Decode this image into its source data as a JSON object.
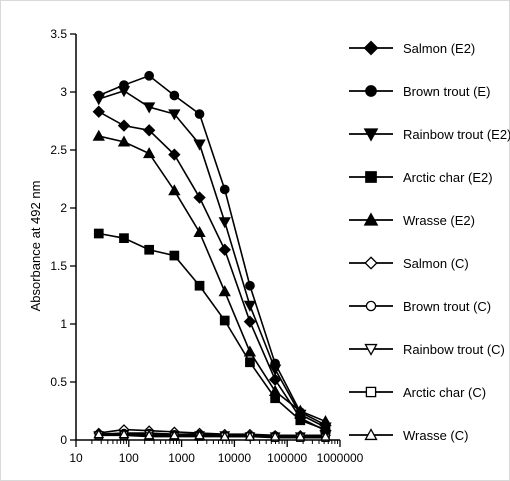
{
  "chart_data": {
    "type": "line",
    "xscale": "log",
    "xlim": [
      10,
      1000000
    ],
    "ylim": [
      0,
      3.5
    ],
    "ylabel": "Absorbance at  492 nm",
    "xlabel": "",
    "grid": false,
    "legend_position": "right",
    "x_ticks": [
      10,
      100,
      1000,
      10000,
      100000,
      1000000
    ],
    "x_tick_labels": [
      "10",
      "100",
      "1000",
      "10000",
      "100000",
      "1000000"
    ],
    "y_ticks": [
      0,
      0.5,
      1,
      1.5,
      2,
      2.5,
      3,
      3.5
    ],
    "y_tick_labels": [
      "0",
      "0.5",
      "1",
      "1.5",
      "2",
      "2.5",
      "3",
      "3.5"
    ],
    "x": [
      27,
      81,
      243,
      729,
      2187,
      6561,
      19683,
      59049,
      177147,
      531441
    ],
    "series": [
      {
        "name": "Salmon (E2)",
        "marker": "diamond",
        "filled": true,
        "values": [
          2.83,
          2.71,
          2.67,
          2.46,
          2.09,
          1.64,
          1.02,
          0.52,
          0.19,
          0.08
        ]
      },
      {
        "name": "Brown trout (E)",
        "marker": "circle",
        "filled": true,
        "values": [
          2.97,
          3.06,
          3.14,
          2.97,
          2.81,
          2.16,
          1.33,
          0.66,
          0.24,
          0.13
        ]
      },
      {
        "name": "Rainbow trout (E2)",
        "marker": "triangle-down",
        "filled": true,
        "values": [
          2.94,
          3.01,
          2.87,
          2.81,
          2.55,
          1.88,
          1.16,
          0.61,
          0.22,
          0.11
        ]
      },
      {
        "name": "Arctic char (E2)",
        "marker": "square",
        "filled": true,
        "values": [
          1.78,
          1.74,
          1.64,
          1.59,
          1.33,
          1.03,
          0.67,
          0.36,
          0.17,
          0.09
        ]
      },
      {
        "name": "Wrasse (E2)",
        "marker": "triangle-up",
        "filled": true,
        "values": [
          2.62,
          2.57,
          2.47,
          2.15,
          1.79,
          1.28,
          0.76,
          0.42,
          0.25,
          0.16
        ]
      },
      {
        "name": "Salmon (C)",
        "marker": "diamond",
        "filled": false,
        "values": [
          0.06,
          0.09,
          0.08,
          0.07,
          0.06,
          0.05,
          0.05,
          0.04,
          0.04,
          0.04
        ]
      },
      {
        "name": "Brown trout (C)",
        "marker": "circle",
        "filled": false,
        "values": [
          0.05,
          0.06,
          0.06,
          0.05,
          0.05,
          0.04,
          0.04,
          0.04,
          0.03,
          0.03
        ]
      },
      {
        "name": "Rainbow trout (C)",
        "marker": "triangle-down",
        "filled": false,
        "values": [
          0.04,
          0.05,
          0.05,
          0.04,
          0.04,
          0.04,
          0.03,
          0.03,
          0.03,
          0.03
        ]
      },
      {
        "name": "Arctic char (C)",
        "marker": "square",
        "filled": false,
        "values": [
          0.04,
          0.04,
          0.03,
          0.03,
          0.03,
          0.03,
          0.03,
          0.02,
          0.02,
          0.02
        ]
      },
      {
        "name": "Wrasse (C)",
        "marker": "triangle-up",
        "filled": false,
        "values": [
          0.05,
          0.05,
          0.04,
          0.04,
          0.04,
          0.03,
          0.03,
          0.03,
          0.03,
          0.03
        ]
      }
    ]
  },
  "colors": {
    "line": "#000000",
    "background": "#ffffff"
  }
}
